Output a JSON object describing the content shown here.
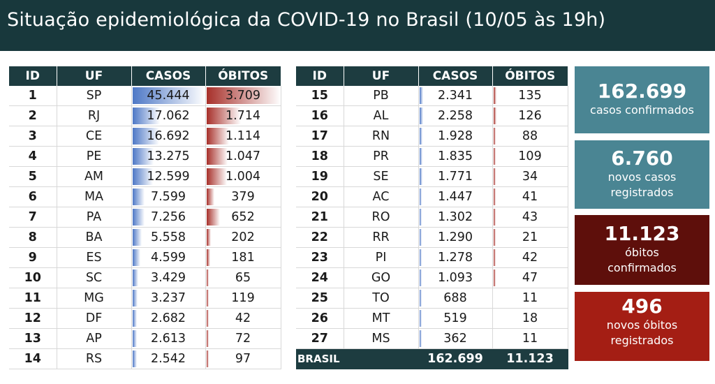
{
  "header": {
    "title": "Situação epidemiológica da COVID-19 no Brasil (10/05 às 19h)"
  },
  "colors": {
    "header_bg": "#18383c",
    "table_header_bg": "#1d3c40",
    "casos_bar": "#4e78c6",
    "obitos_bar": "#a7302a",
    "card_teal": "#4a8593",
    "card_darkred": "#5e0f0b",
    "card_red": "#a41e14"
  },
  "table_headers": {
    "id": "ID",
    "uf": "UF",
    "casos": "CASOS",
    "obitos": "ÓBITOS"
  },
  "total": {
    "label": "BRASIL",
    "casos": "162.699",
    "obitos": "11.123"
  },
  "cards": [
    {
      "value": "162.699",
      "label_lines": [
        "casos confirmados"
      ]
    },
    {
      "value": "6.760",
      "label_lines": [
        "novos casos",
        "registrados"
      ]
    },
    {
      "value": "11.123",
      "label_lines": [
        "óbitos",
        "confirmados"
      ]
    },
    {
      "value": "496",
      "label_lines": [
        "novos óbitos",
        "registrados"
      ]
    }
  ],
  "chart_data": {
    "type": "table",
    "columns": [
      "ID",
      "UF",
      "CASOS",
      "ÓBITOS"
    ],
    "rows": [
      {
        "id": "1",
        "uf": "SP",
        "casos": "45.444",
        "obitos": "3.709",
        "casos_n": 45444,
        "obitos_n": 3709
      },
      {
        "id": "2",
        "uf": "RJ",
        "casos": "17.062",
        "obitos": "1.714",
        "casos_n": 17062,
        "obitos_n": 1714
      },
      {
        "id": "3",
        "uf": "CE",
        "casos": "16.692",
        "obitos": "1.114",
        "casos_n": 16692,
        "obitos_n": 1114
      },
      {
        "id": "4",
        "uf": "PE",
        "casos": "13.275",
        "obitos": "1.047",
        "casos_n": 13275,
        "obitos_n": 1047
      },
      {
        "id": "5",
        "uf": "AM",
        "casos": "12.599",
        "obitos": "1.004",
        "casos_n": 12599,
        "obitos_n": 1004
      },
      {
        "id": "6",
        "uf": "MA",
        "casos": "7.599",
        "obitos": "379",
        "casos_n": 7599,
        "obitos_n": 379
      },
      {
        "id": "7",
        "uf": "PA",
        "casos": "7.256",
        "obitos": "652",
        "casos_n": 7256,
        "obitos_n": 652
      },
      {
        "id": "8",
        "uf": "BA",
        "casos": "5.558",
        "obitos": "202",
        "casos_n": 5558,
        "obitos_n": 202
      },
      {
        "id": "9",
        "uf": "ES",
        "casos": "4.599",
        "obitos": "181",
        "casos_n": 4599,
        "obitos_n": 181
      },
      {
        "id": "10",
        "uf": "SC",
        "casos": "3.429",
        "obitos": "65",
        "casos_n": 3429,
        "obitos_n": 65
      },
      {
        "id": "11",
        "uf": "MG",
        "casos": "3.237",
        "obitos": "119",
        "casos_n": 3237,
        "obitos_n": 119
      },
      {
        "id": "12",
        "uf": "DF",
        "casos": "2.682",
        "obitos": "42",
        "casos_n": 2682,
        "obitos_n": 42
      },
      {
        "id": "13",
        "uf": "AP",
        "casos": "2.613",
        "obitos": "72",
        "casos_n": 2613,
        "obitos_n": 72
      },
      {
        "id": "14",
        "uf": "RS",
        "casos": "2.542",
        "obitos": "97",
        "casos_n": 2542,
        "obitos_n": 97
      },
      {
        "id": "15",
        "uf": "PB",
        "casos": "2.341",
        "obitos": "135",
        "casos_n": 2341,
        "obitos_n": 135
      },
      {
        "id": "16",
        "uf": "AL",
        "casos": "2.258",
        "obitos": "126",
        "casos_n": 2258,
        "obitos_n": 126
      },
      {
        "id": "17",
        "uf": "RN",
        "casos": "1.928",
        "obitos": "88",
        "casos_n": 1928,
        "obitos_n": 88
      },
      {
        "id": "18",
        "uf": "PR",
        "casos": "1.835",
        "obitos": "109",
        "casos_n": 1835,
        "obitos_n": 109
      },
      {
        "id": "19",
        "uf": "SE",
        "casos": "1.771",
        "obitos": "34",
        "casos_n": 1771,
        "obitos_n": 34
      },
      {
        "id": "20",
        "uf": "AC",
        "casos": "1.447",
        "obitos": "41",
        "casos_n": 1447,
        "obitos_n": 41
      },
      {
        "id": "21",
        "uf": "RO",
        "casos": "1.302",
        "obitos": "43",
        "casos_n": 1302,
        "obitos_n": 43
      },
      {
        "id": "22",
        "uf": "RR",
        "casos": "1.290",
        "obitos": "21",
        "casos_n": 1290,
        "obitos_n": 21
      },
      {
        "id": "23",
        "uf": "PI",
        "casos": "1.278",
        "obitos": "42",
        "casos_n": 1278,
        "obitos_n": 42
      },
      {
        "id": "24",
        "uf": "GO",
        "casos": "1.093",
        "obitos": "47",
        "casos_n": 1093,
        "obitos_n": 47
      },
      {
        "id": "25",
        "uf": "TO",
        "casos": "688",
        "obitos": "11",
        "casos_n": 688,
        "obitos_n": 11
      },
      {
        "id": "26",
        "uf": "MT",
        "casos": "519",
        "obitos": "18",
        "casos_n": 519,
        "obitos_n": 18
      },
      {
        "id": "27",
        "uf": "MS",
        "casos": "362",
        "obitos": "11",
        "casos_n": 362,
        "obitos_n": 11
      }
    ]
  }
}
